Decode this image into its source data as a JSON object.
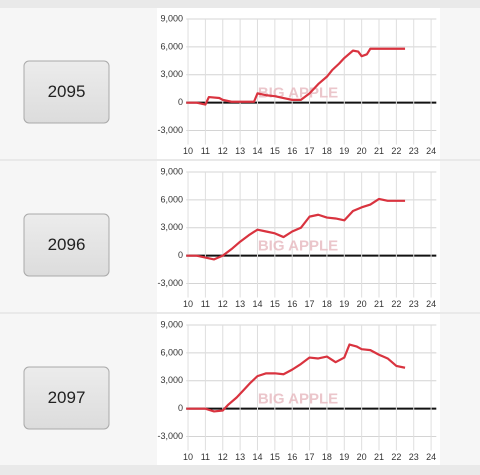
{
  "rows": [
    {
      "label": "2095"
    },
    {
      "label": "2096"
    },
    {
      "label": "2097"
    }
  ],
  "watermark": "BIG APPLE",
  "chart_data": [
    {
      "type": "line",
      "x": [
        9.9,
        10.5,
        11,
        11.2,
        11.8,
        12,
        12.5,
        13,
        13.8,
        14,
        14.5,
        15,
        15.5,
        16,
        16.5,
        17,
        17.5,
        18,
        18.3,
        18.7,
        19,
        19.5,
        19.8,
        20,
        20.3,
        20.5,
        21,
        22.5
      ],
      "series": [
        {
          "color": "#d9333f",
          "values": [
            0,
            0,
            -200,
            600,
            500,
            300,
            100,
            100,
            100,
            1000,
            800,
            700,
            500,
            300,
            300,
            1000,
            2000,
            2800,
            3500,
            4200,
            4800,
            5600,
            5500,
            5000,
            5200,
            5800,
            5800,
            5800
          ]
        }
      ],
      "xlim": [
        9.9,
        24.3
      ],
      "xticks": [
        10,
        11,
        12,
        13,
        14,
        15,
        16,
        17,
        18,
        19,
        20,
        21,
        22,
        23,
        24
      ],
      "ylim": [
        -4500,
        9000
      ],
      "yticks": [
        {
          "value": -3000,
          "label": "-3,000"
        },
        0,
        {
          "value": 3000,
          "label": "3,000"
        },
        {
          "value": 6000,
          "label": "6,000"
        },
        {
          "value": 9000,
          "label": "9,000"
        }
      ],
      "grid": true
    },
    {
      "type": "line",
      "x": [
        9.9,
        10.5,
        11,
        11.5,
        12,
        12.5,
        13,
        13.5,
        14,
        14.5,
        15,
        15.5,
        16,
        16.5,
        17,
        17.5,
        18,
        18.5,
        19,
        19.5,
        20,
        20.5,
        21,
        21.5,
        22.5
      ],
      "series": [
        {
          "color": "#d9333f",
          "values": [
            0,
            0,
            -200,
            -400,
            0,
            700,
            1500,
            2200,
            2800,
            2600,
            2400,
            2000,
            2600,
            3000,
            4200,
            4400,
            4100,
            4000,
            3800,
            4800,
            5200,
            5500,
            6100,
            5900,
            5900
          ]
        }
      ],
      "xlim": [
        9.9,
        24.3
      ],
      "xticks": [
        10,
        11,
        12,
        13,
        14,
        15,
        16,
        17,
        18,
        19,
        20,
        21,
        22,
        23,
        24
      ],
      "ylim": [
        -4500,
        9000
      ],
      "yticks": [
        {
          "value": -3000,
          "label": "-3,000"
        },
        0,
        {
          "value": 3000,
          "label": "3,000"
        },
        {
          "value": 6000,
          "label": "6,000"
        },
        {
          "value": 9000,
          "label": "9,000"
        }
      ],
      "grid": true
    },
    {
      "type": "line",
      "x": [
        9.9,
        11,
        11.5,
        12,
        12.3,
        12.8,
        13.2,
        13.6,
        14,
        14.5,
        15,
        15.5,
        16,
        16.5,
        17,
        17.5,
        18,
        18.5,
        19,
        19.3,
        19.7,
        20,
        20.5,
        21,
        21.5,
        22,
        22.5
      ],
      "series": [
        {
          "color": "#d9333f",
          "values": [
            0,
            0,
            -300,
            -200,
            400,
            1200,
            2000,
            2800,
            3500,
            3800,
            3800,
            3700,
            4200,
            4800,
            5500,
            5400,
            5600,
            5000,
            5500,
            6900,
            6700,
            6400,
            6300,
            5800,
            5400,
            4600,
            4400
          ]
        }
      ],
      "xlim": [
        9.9,
        24.3
      ],
      "xticks": [
        10,
        11,
        12,
        13,
        14,
        15,
        16,
        17,
        18,
        19,
        20,
        21,
        22,
        23,
        24
      ],
      "ylim": [
        -4500,
        9000
      ],
      "yticks": [
        {
          "value": -3000,
          "label": "-3,000"
        },
        0,
        {
          "value": 3000,
          "label": "3,000"
        },
        {
          "value": 6000,
          "label": "6,000"
        },
        {
          "value": 9000,
          "label": "9,000"
        }
      ],
      "grid": true
    }
  ]
}
